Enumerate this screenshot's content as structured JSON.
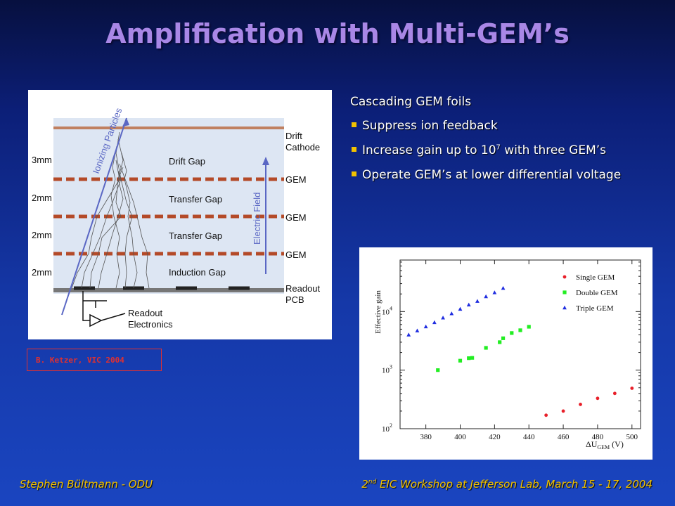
{
  "slide": {
    "title": "Amplification with Multi-GEM’s",
    "bullets": {
      "heading": "Cascading GEM foils",
      "items": [
        {
          "pre": "Suppress ion feedback",
          "sup": "",
          "post": ""
        },
        {
          "pre": "Increase gain up to 10",
          "sup": "7",
          "post": " with three GEM’s"
        },
        {
          "pre": "Operate GEM’s at lower differential voltage",
          "sup": "",
          "post": ""
        }
      ]
    },
    "credit": "B. Ketzer, VIC 2004",
    "footer_left": "Stephen Bültmann - ODU",
    "footer_right": {
      "pre": "2",
      "sup": "nd",
      "post": " EIC Workshop at Jefferson Lab, March 15 - 17, 2004"
    },
    "colors": {
      "title": "#a987e6",
      "bullet": "#f2c200",
      "footer": "#f2c200",
      "credit": "#e03030"
    }
  },
  "diagram": {
    "labels_left": [
      "3mm",
      "2mm",
      "2mm",
      "2mm"
    ],
    "labels_right": [
      "Drift",
      "Cathode",
      "GEM",
      "GEM",
      "GEM",
      "Readout",
      "PCB"
    ],
    "gaps": [
      "Drift Gap",
      "Transfer Gap",
      "Transfer Gap",
      "Induction Gap"
    ],
    "ionizing": "Ionizing Particles",
    "field": "Electric Field",
    "readout_el": [
      "Readout",
      "Electronics"
    ]
  },
  "chart_data": {
    "type": "scatter",
    "title": "",
    "xlabel": "ΔU",
    "xlabel_sub": "GEM",
    "xlabel_unit": " (V)",
    "ylabel": "Effective gain",
    "xlim": [
      365,
      505
    ],
    "ylim_log10": [
      2,
      4.88
    ],
    "x_ticks": [
      380,
      400,
      420,
      440,
      460,
      480,
      500
    ],
    "y_ticks": [
      {
        "base": "10",
        "exp": "2",
        "v": 2
      },
      {
        "base": "10",
        "exp": "3",
        "v": 3
      },
      {
        "base": "10",
        "exp": "4",
        "v": 4
      }
    ],
    "legend_position": "top-right",
    "series": [
      {
        "name": "Single GEM",
        "color": "#e8202a",
        "marker": "circle",
        "x": [
          450,
          460,
          470,
          480,
          490,
          500
        ],
        "y": [
          170,
          200,
          260,
          330,
          400,
          490
        ]
      },
      {
        "name": "Double GEM",
        "color": "#22ee22",
        "marker": "square",
        "x": [
          387,
          400,
          405,
          407,
          415,
          423,
          425,
          430,
          435,
          440
        ],
        "y": [
          1000,
          1450,
          1600,
          1620,
          2400,
          3000,
          3500,
          4300,
          4800,
          5500
        ]
      },
      {
        "name": "Triple GEM",
        "color": "#1f2de0",
        "marker": "triangle",
        "x": [
          370,
          375,
          380,
          385,
          390,
          395,
          400,
          405,
          410,
          415,
          420,
          425
        ],
        "y": [
          4000,
          4700,
          5500,
          6500,
          7800,
          9200,
          11000,
          13000,
          15000,
          18000,
          21000,
          25000
        ]
      }
    ]
  }
}
